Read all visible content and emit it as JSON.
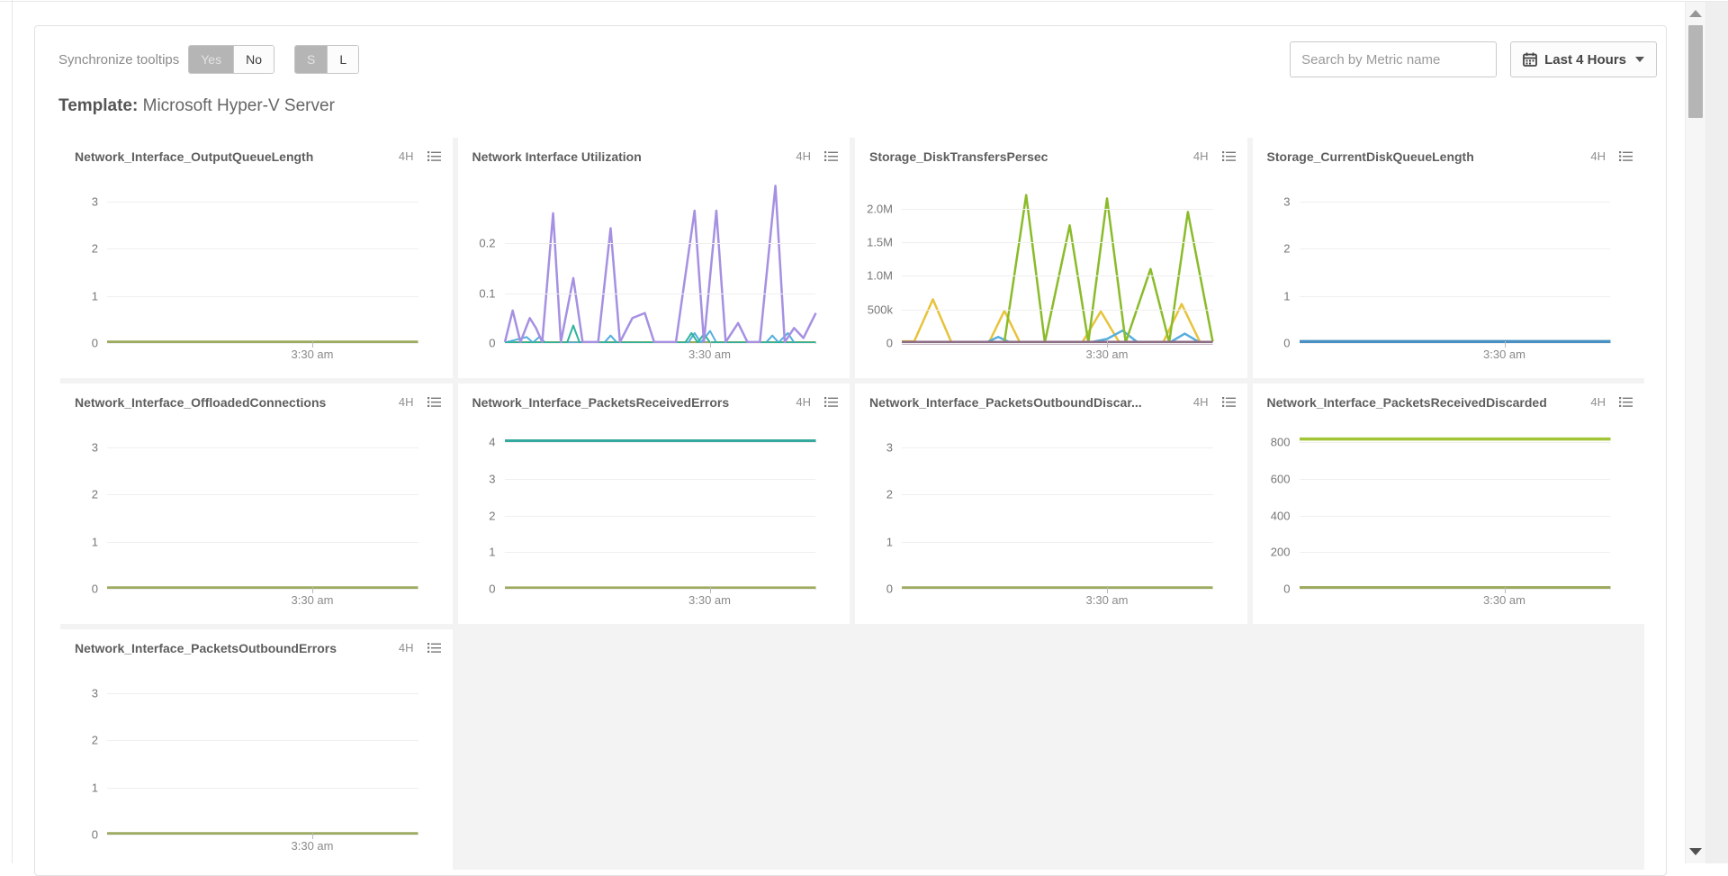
{
  "header": {
    "sync_label": "Synchronize tooltips",
    "yes_label": "Yes",
    "no_label": "No",
    "size_s_label": "S",
    "size_l_label": "L",
    "search_placeholder": "Search by Metric name",
    "time_range_label": "Last 4 Hours"
  },
  "icons": {
    "time_range": "calendar-icon",
    "time_range_caret": "caret-down-icon",
    "chart_menu": "list-menu-icon",
    "scroll_up": "scroll-up-arrow-icon",
    "scroll_down": "scroll-down-arrow-icon"
  },
  "template_title": {
    "label": "Template:",
    "name": "Microsoft Hyper-V Server"
  },
  "chart_data": [
    {
      "type": "line",
      "title": "Network_Interface_OutputQueueLength",
      "range_label": "4H",
      "ymax": 3.5,
      "y_ticks": [
        {
          "v": 3,
          "label": "3"
        },
        {
          "v": 2,
          "label": "2"
        },
        {
          "v": 1,
          "label": "1"
        },
        {
          "v": 0,
          "label": "0"
        }
      ],
      "x_tick": {
        "label": "3:30 am",
        "pos": 66
      },
      "series": [
        {
          "color": "#9cab5f",
          "width": 3.5,
          "points": [
            [
              0,
              0.02
            ],
            [
              100,
              0.02
            ]
          ]
        }
      ]
    },
    {
      "type": "line",
      "title": "Network Interface Utilization",
      "range_label": "4H",
      "ymax": 0.33,
      "y_ticks": [
        {
          "v": 0.2,
          "label": "0.2"
        },
        {
          "v": 0.1,
          "label": "0.1"
        },
        {
          "v": 0,
          "label": "0"
        }
      ],
      "x_tick": {
        "label": "3:30 am",
        "pos": 66
      },
      "series": [
        {
          "color": "#9cab5f",
          "width": 3,
          "points": [
            [
              0,
              0.001
            ],
            [
              100,
              0.001
            ]
          ]
        },
        {
          "color": "#55aede",
          "width": 2,
          "points": [
            [
              0,
              0.001
            ],
            [
              7,
              0.012
            ],
            [
              9,
              0.001
            ],
            [
              11,
              0.012
            ],
            [
              13,
              0.001
            ],
            [
              32,
              0.001
            ],
            [
              34,
              0.015
            ],
            [
              36,
              0.001
            ],
            [
              59,
              0.001
            ],
            [
              61,
              0.02
            ],
            [
              63,
              0.001
            ],
            [
              66,
              0.024
            ],
            [
              68,
              0.001
            ],
            [
              84,
              0.001
            ],
            [
              86,
              0.015
            ],
            [
              88,
              0.001
            ],
            [
              91,
              0.02
            ],
            [
              93,
              0.001
            ],
            [
              100,
              0.001
            ]
          ]
        },
        {
          "color": "#2eb39b",
          "width": 2,
          "points": [
            [
              0,
              0.001
            ],
            [
              20,
              0.001
            ],
            [
              22,
              0.035
            ],
            [
              24,
              0.001
            ],
            [
              58,
              0.001
            ],
            [
              60,
              0.02
            ],
            [
              62,
              0.001
            ],
            [
              64,
              0.018
            ],
            [
              66,
              0.001
            ],
            [
              100,
              0.001
            ]
          ]
        },
        {
          "color": "#a690e2",
          "width": 2.5,
          "points": [
            [
              0,
              0.002
            ],
            [
              2.5,
              0.065
            ],
            [
              5,
              0.002
            ],
            [
              8,
              0.05
            ],
            [
              10,
              0.03
            ],
            [
              12,
              0.002
            ],
            [
              15.5,
              0.26
            ],
            [
              18,
              0.002
            ],
            [
              22,
              0.13
            ],
            [
              25,
              0.002
            ],
            [
              30,
              0.002
            ],
            [
              34,
              0.23
            ],
            [
              37,
              0.002
            ],
            [
              41,
              0.05
            ],
            [
              45,
              0.06
            ],
            [
              48,
              0.002
            ],
            [
              55,
              0.002
            ],
            [
              61,
              0.265
            ],
            [
              64,
              0.002
            ],
            [
              68,
              0.265
            ],
            [
              71,
              0.002
            ],
            [
              75,
              0.04
            ],
            [
              78,
              0.002
            ],
            [
              82,
              0.002
            ],
            [
              87,
              0.315
            ],
            [
              90,
              0.002
            ],
            [
              93,
              0.03
            ],
            [
              96,
              0.01
            ],
            [
              100,
              0.06
            ]
          ]
        }
      ]
    },
    {
      "type": "line",
      "title": "Storage_DiskTransfersPersec",
      "range_label": "4H",
      "ymax": 2450000,
      "y_ticks": [
        {
          "v": 2000000,
          "label": "2.0M"
        },
        {
          "v": 1500000,
          "label": "1.5M"
        },
        {
          "v": 1000000,
          "label": "1.0M"
        },
        {
          "v": 500000,
          "label": "500k"
        },
        {
          "v": 0,
          "label": "0"
        }
      ],
      "x_tick": {
        "label": "3:30 am",
        "pos": 66
      },
      "series": [
        {
          "color": "#e7c33c",
          "width": 2.5,
          "points": [
            [
              0,
              25000
            ],
            [
              4,
              25000
            ],
            [
              10,
              650000
            ],
            [
              16,
              5000
            ],
            [
              28,
              5000
            ],
            [
              33,
              480000
            ],
            [
              38,
              5000
            ],
            [
              58,
              5000
            ],
            [
              64,
              470000
            ],
            [
              70,
              5000
            ],
            [
              84,
              5000
            ],
            [
              90,
              580000
            ],
            [
              96,
              5000
            ],
            [
              100,
              5000
            ]
          ]
        },
        {
          "color": "#55aede",
          "width": 2.5,
          "points": [
            [
              0,
              3000
            ],
            [
              27,
              3000
            ],
            [
              31,
              90000
            ],
            [
              35,
              3000
            ],
            [
              60,
              3000
            ],
            [
              66,
              60000
            ],
            [
              71,
              185000
            ],
            [
              76,
              3000
            ],
            [
              86,
              3000
            ],
            [
              91,
              140000
            ],
            [
              96,
              3000
            ],
            [
              100,
              15000
            ]
          ]
        },
        {
          "color": "#8abb29",
          "width": 2.5,
          "points": [
            [
              0,
              15000
            ],
            [
              33,
              15000
            ],
            [
              40,
              2200000
            ],
            [
              46,
              10000
            ],
            [
              54,
              1750000
            ],
            [
              60,
              10000
            ],
            [
              66,
              2150000
            ],
            [
              72,
              10000
            ],
            [
              80,
              1100000
            ],
            [
              86,
              10000
            ],
            [
              92,
              1950000
            ],
            [
              100,
              20000
            ]
          ]
        },
        {
          "color": "#8e6c86",
          "width": 4,
          "points": [
            [
              0,
              6000
            ],
            [
              100,
              6000
            ]
          ]
        }
      ]
    },
    {
      "type": "line",
      "title": "Storage_CurrentDiskQueueLength",
      "range_label": "4H",
      "ymax": 3.5,
      "y_ticks": [
        {
          "v": 3,
          "label": "3"
        },
        {
          "v": 2,
          "label": "2"
        },
        {
          "v": 1,
          "label": "1"
        },
        {
          "v": 0,
          "label": "0"
        }
      ],
      "x_tick": {
        "label": "3:30 am",
        "pos": 66
      },
      "series": [
        {
          "color": "#4a90c2",
          "width": 3.5,
          "points": [
            [
              0,
              0.03
            ],
            [
              100,
              0.03
            ]
          ]
        }
      ]
    },
    {
      "type": "line",
      "title": "Network_Interface_OffloadedConnections",
      "range_label": "4H",
      "ymax": 3.5,
      "y_ticks": [
        {
          "v": 3,
          "label": "3"
        },
        {
          "v": 2,
          "label": "2"
        },
        {
          "v": 1,
          "label": "1"
        },
        {
          "v": 0,
          "label": "0"
        }
      ],
      "x_tick": {
        "label": "3:30 am",
        "pos": 66
      },
      "series": [
        {
          "color": "#9cab5f",
          "width": 3.5,
          "points": [
            [
              0,
              0.02
            ],
            [
              100,
              0.02
            ]
          ]
        }
      ]
    },
    {
      "type": "line",
      "title": "Network_Interface_PacketsReceivedErrors",
      "range_label": "4H",
      "ymax": 4.5,
      "y_ticks": [
        {
          "v": 4,
          "label": "4"
        },
        {
          "v": 3,
          "label": "3"
        },
        {
          "v": 2,
          "label": "2"
        },
        {
          "v": 1,
          "label": "1"
        },
        {
          "v": 0,
          "label": "0"
        }
      ],
      "x_tick": {
        "label": "3:30 am",
        "pos": 66
      },
      "series": [
        {
          "color": "#9cab5f",
          "width": 3.5,
          "points": [
            [
              0,
              0.02
            ],
            [
              100,
              0.02
            ]
          ]
        },
        {
          "color": "#35a8a0",
          "width": 3.5,
          "points": [
            [
              0,
              4.04
            ],
            [
              100,
              4.04
            ]
          ]
        }
      ]
    },
    {
      "type": "line",
      "title": "Network_Interface_PacketsOutboundDiscar...",
      "range_label": "4H",
      "ymax": 3.5,
      "y_ticks": [
        {
          "v": 3,
          "label": "3"
        },
        {
          "v": 2,
          "label": "2"
        },
        {
          "v": 1,
          "label": "1"
        },
        {
          "v": 0,
          "label": "0"
        }
      ],
      "x_tick": {
        "label": "3:30 am",
        "pos": 66
      },
      "series": [
        {
          "color": "#9cab5f",
          "width": 3.5,
          "points": [
            [
              0,
              0.02
            ],
            [
              100,
              0.02
            ]
          ]
        }
      ]
    },
    {
      "type": "line",
      "title": "Network_Interface_PacketsReceivedDiscarded",
      "range_label": "4H",
      "ymax": 900,
      "y_ticks": [
        {
          "v": 800,
          "label": "800"
        },
        {
          "v": 600,
          "label": "600"
        },
        {
          "v": 400,
          "label": "400"
        },
        {
          "v": 200,
          "label": "200"
        },
        {
          "v": 0,
          "label": "0"
        }
      ],
      "x_tick": {
        "label": "3:30 am",
        "pos": 66
      },
      "series": [
        {
          "color": "#9cab5f",
          "width": 3.5,
          "points": [
            [
              0,
              6
            ],
            [
              100,
              6
            ]
          ]
        },
        {
          "color": "#a2c437",
          "width": 3.5,
          "points": [
            [
              0,
              818
            ],
            [
              100,
              818
            ]
          ]
        }
      ]
    },
    {
      "type": "line",
      "title": "Network_Interface_PacketsOutboundErrors",
      "range_label": "4H",
      "ymax": 3.5,
      "y_ticks": [
        {
          "v": 3,
          "label": "3"
        },
        {
          "v": 2,
          "label": "2"
        },
        {
          "v": 1,
          "label": "1"
        },
        {
          "v": 0,
          "label": "0"
        }
      ],
      "x_tick": {
        "label": "3:30 am",
        "pos": 66
      },
      "series": [
        {
          "color": "#9cab5f",
          "width": 3.5,
          "points": [
            [
              0,
              0.02
            ],
            [
              100,
              0.02
            ]
          ]
        }
      ]
    }
  ]
}
